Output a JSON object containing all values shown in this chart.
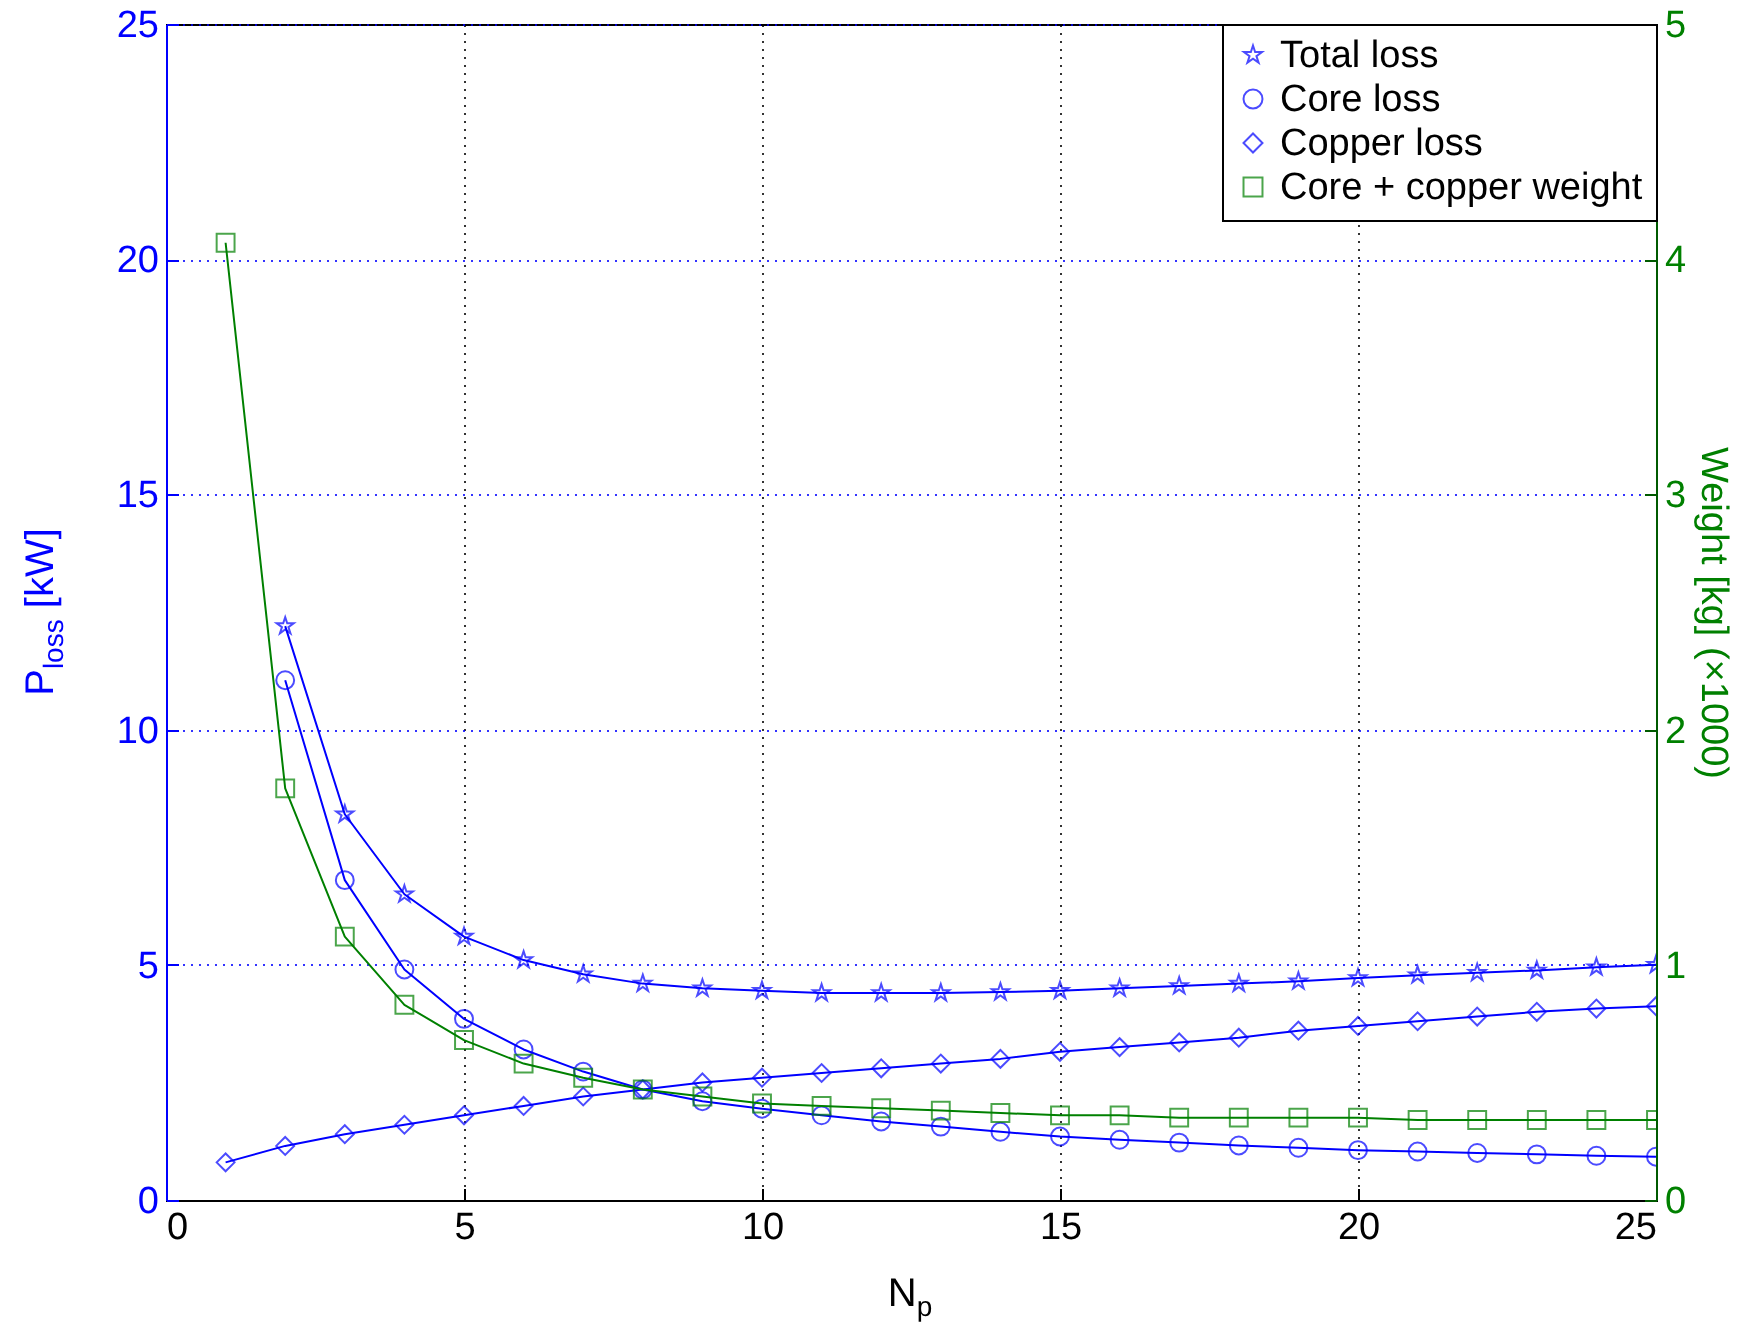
{
  "chart_data": {
    "type": "line",
    "xlabel": "N$_{p}$",
    "ylabel": "P$_{loss}$ [kW]",
    "y2label": "Weight [kg] (×1000)",
    "x": [
      1,
      2,
      3,
      4,
      5,
      6,
      7,
      8,
      9,
      10,
      11,
      12,
      13,
      14,
      15,
      16,
      17,
      18,
      19,
      20,
      21,
      22,
      23,
      24,
      25
    ],
    "series": [
      {
        "name": "Total loss",
        "color": "#0000ff",
        "marker": "star",
        "values": [
          null,
          12.2,
          8.2,
          6.5,
          5.6,
          5.1,
          4.8,
          4.6,
          4.5,
          4.45,
          4.4,
          4.4,
          4.4,
          4.42,
          4.45,
          4.5,
          4.55,
          4.6,
          4.65,
          4.72,
          4.78,
          4.83,
          4.88,
          4.95,
          5.0
        ]
      },
      {
        "name": "Core loss",
        "color": "#0000ff",
        "marker": "circle",
        "values": [
          null,
          11.05,
          6.8,
          4.9,
          3.85,
          3.2,
          2.73,
          2.35,
          2.1,
          1.94,
          1.8,
          1.67,
          1.56,
          1.45,
          1.35,
          1.28,
          1.22,
          1.16,
          1.11,
          1.06,
          1.03,
          1.0,
          0.97,
          0.94,
          0.92
        ]
      },
      {
        "name": "Copper loss",
        "color": "#0000ff",
        "marker": "diamond",
        "values": [
          0.8,
          1.15,
          1.4,
          1.6,
          1.8,
          2.0,
          2.2,
          2.35,
          2.5,
          2.6,
          2.7,
          2.8,
          2.9,
          3.0,
          3.15,
          3.25,
          3.35,
          3.45,
          3.6,
          3.7,
          3.8,
          3.9,
          4.0,
          4.07,
          4.12
        ]
      },
      {
        "name": "Core + copper weight",
        "color": "#008000",
        "marker": "square",
        "axis": "y2",
        "values": [
          4.07,
          1.75,
          1.12,
          0.83,
          0.68,
          0.58,
          0.52,
          0.47,
          0.44,
          0.41,
          0.4,
          0.39,
          0.38,
          0.37,
          0.36,
          0.36,
          0.35,
          0.35,
          0.35,
          0.35,
          0.34,
          0.34,
          0.34,
          0.34,
          0.34
        ]
      }
    ],
    "xlim": [
      0,
      25
    ],
    "xticks": [
      0,
      5,
      10,
      15,
      20,
      25
    ],
    "ylim": [
      0,
      25
    ],
    "yticks": [
      0,
      5,
      10,
      15,
      20,
      25
    ],
    "y2lim": [
      0,
      5
    ],
    "y2ticks": [
      0,
      1,
      2,
      3,
      4,
      5
    ],
    "grid": true,
    "legend": "top right",
    "line_style": "solid"
  }
}
